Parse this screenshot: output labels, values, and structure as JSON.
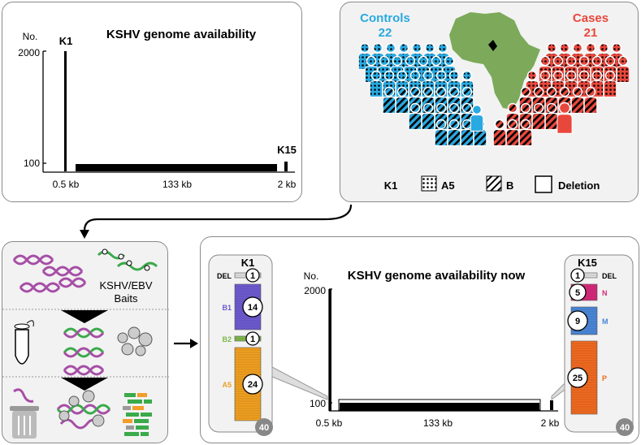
{
  "panel_a": {
    "title": "KSHV genome availability",
    "y_axis_label": "No.",
    "y_ticks": [
      "2000",
      "100"
    ],
    "k1_label": "K1",
    "k15_label": "K15",
    "x_labels": [
      "0.5 kb",
      "133 kb",
      "2 kb"
    ]
  },
  "panel_b": {
    "controls_label": "Controls",
    "controls_count": "22",
    "cases_label": "Cases",
    "cases_count": "21",
    "legend": {
      "k1_label": "K1",
      "a5_label": "A5",
      "b_label": "B",
      "deletion_label": "Deletion"
    },
    "colors": {
      "controls": "#29a9e1",
      "cases": "#e8473c",
      "africa": "#7caa5a"
    }
  },
  "panel_c": {
    "baits_label": "KSHV/EBV\nBaits",
    "colors": {
      "purple": "#a64ea6",
      "green": "#3aaa4a",
      "orange": "#f39c2a",
      "gray": "#9a9a9a"
    }
  },
  "panel_d": {
    "title": "KSHV genome availability now",
    "y_axis_label": "No.",
    "y_ticks": [
      "2000",
      "100"
    ],
    "x_labels": [
      "0.5 kb",
      "133 kb",
      "2 kb"
    ],
    "k1_box": {
      "title": "K1",
      "groups": [
        {
          "label": "DEL",
          "count": "1",
          "color": "#dddddd"
        },
        {
          "label": "B1",
          "count": "14",
          "color": "#6d5bd0"
        },
        {
          "label": "B2",
          "count": "1",
          "color": "#7db84a"
        },
        {
          "label": "A5",
          "count": "24",
          "color": "#f0a020"
        }
      ],
      "total": "40"
    },
    "k15_box": {
      "title": "K15",
      "groups": [
        {
          "label": "DEL",
          "count": "1",
          "color": "#dddddd"
        },
        {
          "label": "N",
          "count": "5",
          "color": "#d6287a"
        },
        {
          "label": "M",
          "count": "9",
          "color": "#4a86d8"
        },
        {
          "label": "P",
          "count": "25",
          "color": "#f06a20"
        }
      ],
      "total": "40"
    }
  }
}
